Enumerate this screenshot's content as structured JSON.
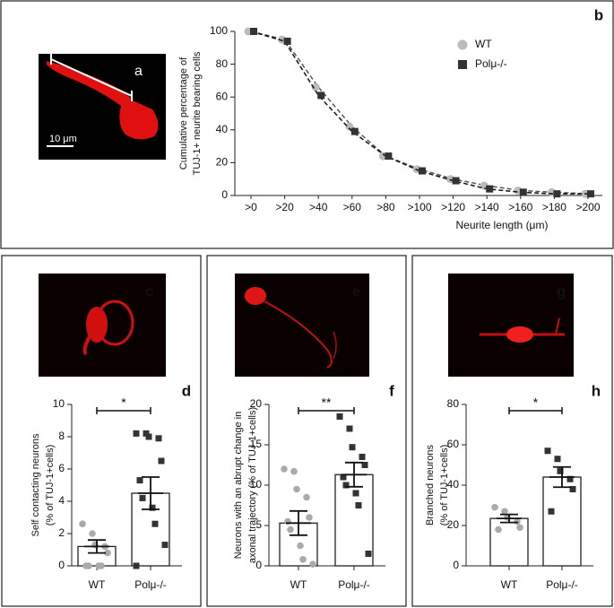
{
  "images": [
    {
      "panel": "a",
      "scale_bar": "10 μm"
    },
    {
      "panel": "c"
    },
    {
      "panel": "e"
    },
    {
      "panel": "g"
    }
  ],
  "chart_data": [
    {
      "type": "line",
      "panel": "b",
      "ylabel": [
        "Cumulative percentage of",
        "TUJ-1+ neurite bearing cells"
      ],
      "xlabel": "Neurite length  (μm)",
      "categories": [
        ">0",
        ">20",
        ">40",
        ">60",
        ">80",
        ">100",
        ">120",
        ">140",
        ">160",
        ">180",
        ">200"
      ],
      "series": [
        {
          "name": "WT",
          "color": "#bbbbbb",
          "marker": "circle",
          "values": [
            100,
            95,
            66,
            42,
            24,
            16,
            10,
            6,
            3,
            2,
            1
          ]
        },
        {
          "name": "Polμ-/-",
          "color": "#333333",
          "marker": "square",
          "values": [
            100,
            94,
            61,
            39,
            24,
            15,
            9,
            4,
            2,
            1,
            1
          ]
        }
      ],
      "ylim": [
        0,
        100
      ],
      "yticks": [
        0,
        20,
        40,
        60,
        80,
        100
      ]
    },
    {
      "type": "bar",
      "panel": "d",
      "ylabel": [
        "Self contacting neurons",
        "(% of TUJ-1+cells)"
      ],
      "categories": [
        "WT",
        "Polμ-/-"
      ],
      "colors": [
        "#aaaaaa",
        "#333333"
      ],
      "values": [
        1.2,
        4.5
      ],
      "errors": [
        0.4,
        1.0
      ],
      "points": [
        [
          2.6,
          2.0,
          1.3,
          1.2,
          0.8,
          0,
          0,
          0,
          0
        ],
        [
          8.2,
          8.2,
          8.0,
          7.9,
          6.5,
          5.3,
          4.2,
          3.6,
          2.6,
          1.3,
          0
        ]
      ],
      "significance": "*",
      "ylim": [
        0,
        10
      ],
      "yticks": [
        0,
        2,
        4,
        6,
        8,
        10
      ]
    },
    {
      "type": "bar",
      "panel": "f",
      "ylabel": [
        "Neurons with an abrupt change in",
        "axonal trajectory (% of TUJ-1+cells)"
      ],
      "categories": [
        "WT",
        "Polμ-/-"
      ],
      "colors": [
        "#aaaaaa",
        "#333333"
      ],
      "values": [
        5.3,
        11.3
      ],
      "errors": [
        1.5,
        1.5
      ],
      "points": [
        [
          12,
          11.7,
          9.5,
          8.5,
          6,
          5.5,
          4.5,
          2.5,
          0.8,
          0.2
        ],
        [
          18.5,
          17,
          14.7,
          13.5,
          12.5,
          11,
          10,
          9,
          7.5,
          1.5
        ]
      ],
      "significance": "**",
      "ylim": [
        0,
        20
      ],
      "yticks": [
        0,
        5,
        10,
        15,
        20
      ]
    },
    {
      "type": "bar",
      "panel": "h",
      "ylabel": [
        "Branched neurons",
        "(% of TUJ-1+cells)"
      ],
      "categories": [
        "WT",
        "Polμ-/-"
      ],
      "colors": [
        "#aaaaaa",
        "#333333"
      ],
      "values": [
        23.5,
        44
      ],
      "errors": [
        2,
        5
      ],
      "points": [
        [
          29,
          27,
          24,
          22,
          19,
          18
        ],
        [
          57,
          53,
          47,
          43,
          38,
          27
        ]
      ],
      "significance": "*",
      "ylim": [
        0,
        80
      ],
      "yticks": [
        0,
        20,
        40,
        60,
        80
      ]
    }
  ]
}
